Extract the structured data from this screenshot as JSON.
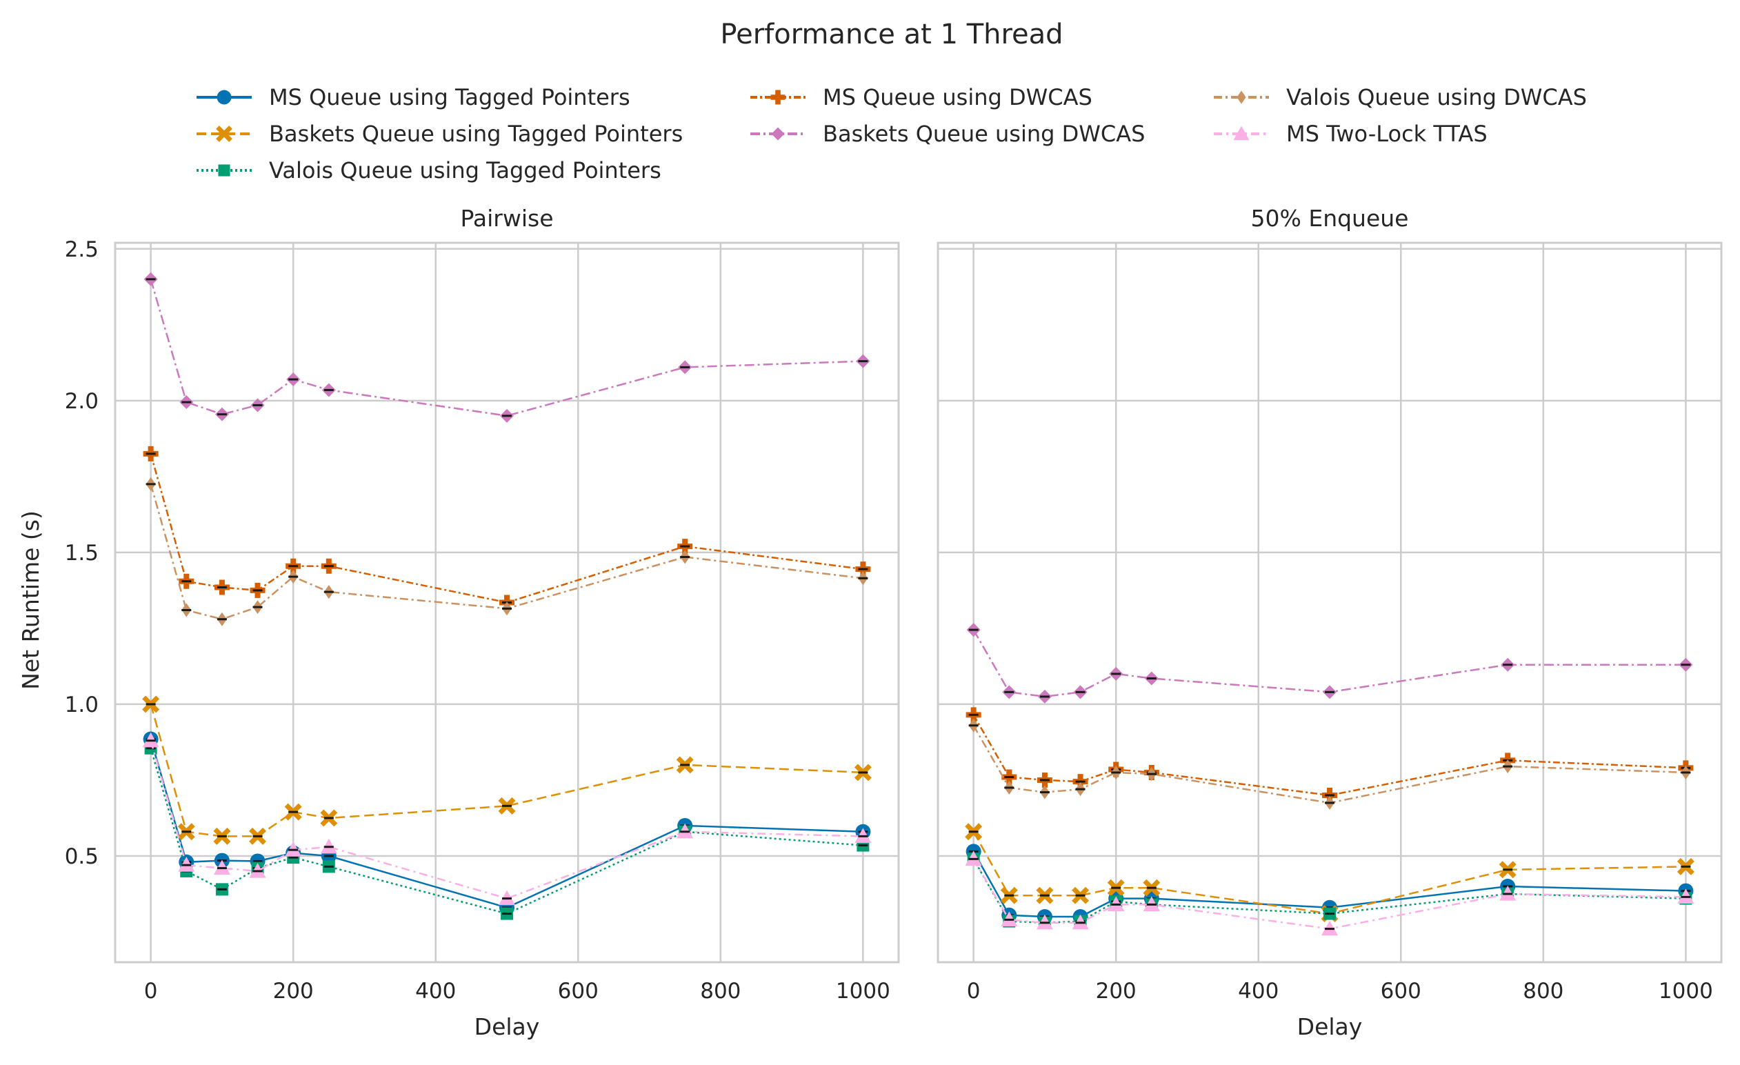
{
  "chart_data": {
    "type": "line",
    "title": "Performance at 1 Thread",
    "ylabel": "Net Runtime (s)",
    "ylim": [
      0.15,
      2.52
    ],
    "yticks": [
      0.5,
      1.0,
      1.5,
      2.0,
      2.5
    ],
    "yticklabels": [
      "0.5",
      "1.0",
      "1.5",
      "2.0",
      "2.5"
    ],
    "xlim": [
      -50,
      1050
    ],
    "xticks": [
      0,
      200,
      400,
      600,
      800,
      1000
    ],
    "xticklabels": [
      "0",
      "200",
      "400",
      "600",
      "800",
      "1000"
    ],
    "grid": true,
    "legend_position": "top",
    "x": [
      0,
      50,
      100,
      150,
      200,
      250,
      500,
      750,
      1000
    ],
    "series_style": [
      {
        "name": "MS Queue using Tagged Pointers",
        "color": "#0173b2",
        "marker": "circle",
        "dash": "solid"
      },
      {
        "name": "Baskets Queue using Tagged Pointers",
        "color": "#de8f05",
        "marker": "x",
        "dash": "dashed"
      },
      {
        "name": "Valois Queue using Tagged Pointers",
        "color": "#029e73",
        "marker": "square",
        "dash": "dotted"
      },
      {
        "name": "MS Queue using DWCAS",
        "color": "#d55e00",
        "marker": "plus",
        "dash": "dashdot-dense"
      },
      {
        "name": "Baskets Queue using DWCAS",
        "color": "#cc78bc",
        "marker": "diamond",
        "dash": "dashdot"
      },
      {
        "name": "Valois Queue using DWCAS",
        "color": "#ca9161",
        "marker": "thin-diamond",
        "dash": "dashdot-loose"
      },
      {
        "name": "MS Two-Lock TTAS",
        "color": "#fbafe4",
        "marker": "triangle",
        "dash": "dashdot-pink"
      }
    ],
    "panels": [
      {
        "title": "Pairwise",
        "xlabel": "Delay",
        "series": [
          {
            "name": "MS Queue using Tagged Pointers",
            "values": [
              0.885,
              0.48,
              0.485,
              0.483,
              0.51,
              0.5,
              0.33,
              0.6,
              0.58
            ]
          },
          {
            "name": "Baskets Queue using Tagged Pointers",
            "values": [
              1.0,
              0.58,
              0.565,
              0.565,
              0.645,
              0.625,
              0.665,
              0.8,
              0.775
            ]
          },
          {
            "name": "Valois Queue using Tagged Pointers",
            "values": [
              0.855,
              0.45,
              0.39,
              0.46,
              0.495,
              0.465,
              0.31,
              0.58,
              0.535
            ]
          },
          {
            "name": "MS Queue using DWCAS",
            "values": [
              1.825,
              1.405,
              1.385,
              1.375,
              1.455,
              1.455,
              1.335,
              1.52,
              1.445
            ]
          },
          {
            "name": "Baskets Queue using DWCAS",
            "values": [
              2.4,
              1.995,
              1.955,
              1.985,
              2.07,
              2.035,
              1.95,
              2.11,
              2.13
            ]
          },
          {
            "name": "Valois Queue using DWCAS",
            "values": [
              1.725,
              1.31,
              1.28,
              1.32,
              1.42,
              1.37,
              1.315,
              1.485,
              1.415
            ]
          },
          {
            "name": "MS Two-Lock TTAS",
            "values": [
              0.88,
              0.47,
              0.46,
              0.45,
              0.52,
              0.53,
              0.36,
              0.58,
              0.565
            ]
          }
        ]
      },
      {
        "title": "50% Enqueue",
        "xlabel": "Delay",
        "series": [
          {
            "name": "MS Queue using Tagged Pointers",
            "values": [
              0.515,
              0.305,
              0.3,
              0.3,
              0.36,
              0.36,
              0.33,
              0.4,
              0.385
            ]
          },
          {
            "name": "Baskets Queue using Tagged Pointers",
            "values": [
              0.58,
              0.37,
              0.37,
              0.37,
              0.395,
              0.395,
              0.31,
              0.455,
              0.465
            ]
          },
          {
            "name": "Valois Queue using Tagged Pointers",
            "values": [
              0.49,
              0.285,
              0.28,
              0.285,
              0.35,
              0.34,
              0.31,
              0.375,
              0.36
            ]
          },
          {
            "name": "MS Queue using DWCAS",
            "values": [
              0.965,
              0.76,
              0.75,
              0.745,
              0.785,
              0.775,
              0.7,
              0.815,
              0.79
            ]
          },
          {
            "name": "Baskets Queue using DWCAS",
            "values": [
              1.245,
              1.04,
              1.025,
              1.04,
              1.1,
              1.085,
              1.04,
              1.13,
              1.13
            ]
          },
          {
            "name": "Valois Queue using DWCAS",
            "values": [
              0.93,
              0.725,
              0.71,
              0.72,
              0.775,
              0.77,
              0.675,
              0.795,
              0.775
            ]
          },
          {
            "name": "MS Two-Lock TTAS",
            "values": [
              0.49,
              0.29,
              0.28,
              0.28,
              0.34,
              0.34,
              0.26,
              0.375,
              0.365
            ]
          }
        ]
      }
    ]
  }
}
